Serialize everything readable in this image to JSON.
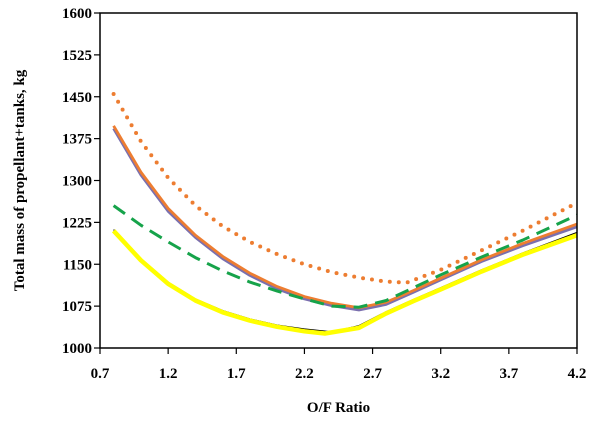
{
  "chart_data": {
    "type": "line",
    "title": "",
    "xlabel": "O/F Ratio",
    "ylabel": "Total mass of propellant+tanks, kg",
    "xlim": [
      0.7,
      4.2
    ],
    "ylim": [
      1000,
      1600
    ],
    "x_ticks": [
      "0.7",
      "1.2",
      "1.7",
      "2.2",
      "2.7",
      "3.2",
      "3.7",
      "4.2"
    ],
    "y_ticks": [
      "1000",
      "1075",
      "1150",
      "1225",
      "1300",
      "1375",
      "1450",
      "1525",
      "1600"
    ],
    "grid": false,
    "legend": "none",
    "series": [
      {
        "color": "#ED7D31",
        "style": "dotted",
        "points": [
          [
            0.8,
            1455
          ],
          [
            1.0,
            1370
          ],
          [
            1.2,
            1305
          ],
          [
            1.4,
            1255
          ],
          [
            1.6,
            1218
          ],
          [
            1.8,
            1190
          ],
          [
            2.0,
            1168
          ],
          [
            2.2,
            1150
          ],
          [
            2.4,
            1136
          ],
          [
            2.6,
            1126
          ],
          [
            2.8,
            1119
          ],
          [
            2.95,
            1117
          ],
          [
            3.2,
            1140
          ],
          [
            3.5,
            1175
          ],
          [
            3.8,
            1210
          ],
          [
            4.2,
            1260
          ]
        ]
      },
      {
        "color": "#7A6FAE",
        "style": "solid",
        "points": [
          [
            0.8,
            1393
          ],
          [
            1.0,
            1310
          ],
          [
            1.2,
            1245
          ],
          [
            1.4,
            1198
          ],
          [
            1.6,
            1160
          ],
          [
            1.8,
            1130
          ],
          [
            2.0,
            1106
          ],
          [
            2.2,
            1088
          ],
          [
            2.4,
            1076
          ],
          [
            2.6,
            1068
          ],
          [
            2.8,
            1078
          ],
          [
            3.0,
            1100
          ],
          [
            3.2,
            1122
          ],
          [
            3.5,
            1155
          ],
          [
            3.8,
            1183
          ],
          [
            4.2,
            1217
          ]
        ]
      },
      {
        "color": "#ED7D31",
        "style": "solid",
        "points": [
          [
            0.8,
            1398
          ],
          [
            1.0,
            1315
          ],
          [
            1.2,
            1250
          ],
          [
            1.4,
            1202
          ],
          [
            1.6,
            1164
          ],
          [
            1.8,
            1134
          ],
          [
            2.0,
            1110
          ],
          [
            2.2,
            1092
          ],
          [
            2.4,
            1080
          ],
          [
            2.6,
            1072
          ],
          [
            2.8,
            1082
          ],
          [
            3.0,
            1103
          ],
          [
            3.2,
            1125
          ],
          [
            3.5,
            1158
          ],
          [
            3.8,
            1187
          ],
          [
            4.2,
            1222
          ]
        ]
      },
      {
        "color": "#16A34A",
        "style": "dashed",
        "points": [
          [
            0.8,
            1255
          ],
          [
            1.0,
            1220
          ],
          [
            1.2,
            1190
          ],
          [
            1.4,
            1162
          ],
          [
            1.6,
            1138
          ],
          [
            1.8,
            1118
          ],
          [
            2.0,
            1102
          ],
          [
            2.2,
            1088
          ],
          [
            2.4,
            1075
          ],
          [
            2.6,
            1073
          ],
          [
            2.8,
            1085
          ],
          [
            3.0,
            1108
          ],
          [
            3.2,
            1131
          ],
          [
            3.5,
            1163
          ],
          [
            3.8,
            1193
          ],
          [
            4.2,
            1238
          ]
        ]
      },
      {
        "color": "#000000",
        "style": "solid",
        "points": [
          [
            0.8,
            1212
          ],
          [
            1.0,
            1160
          ],
          [
            1.2,
            1118
          ],
          [
            1.4,
            1088
          ],
          [
            1.6,
            1067
          ],
          [
            1.8,
            1052
          ],
          [
            2.0,
            1041
          ],
          [
            2.2,
            1034
          ],
          [
            2.4,
            1029
          ],
          [
            2.6,
            1040
          ],
          [
            2.8,
            1065
          ],
          [
            3.0,
            1087
          ],
          [
            3.2,
            1108
          ],
          [
            3.5,
            1140
          ],
          [
            3.8,
            1170
          ],
          [
            4.2,
            1207
          ]
        ]
      },
      {
        "color": "#FFFF00",
        "style": "solid",
        "points": [
          [
            0.8,
            1210
          ],
          [
            1.0,
            1157
          ],
          [
            1.2,
            1115
          ],
          [
            1.4,
            1085
          ],
          [
            1.6,
            1064
          ],
          [
            1.8,
            1049
          ],
          [
            2.0,
            1038
          ],
          [
            2.2,
            1030
          ],
          [
            2.35,
            1026
          ],
          [
            2.6,
            1036
          ],
          [
            2.8,
            1062
          ],
          [
            3.0,
            1084
          ],
          [
            3.2,
            1105
          ],
          [
            3.5,
            1137
          ],
          [
            3.8,
            1167
          ],
          [
            4.2,
            1202
          ]
        ]
      }
    ]
  }
}
